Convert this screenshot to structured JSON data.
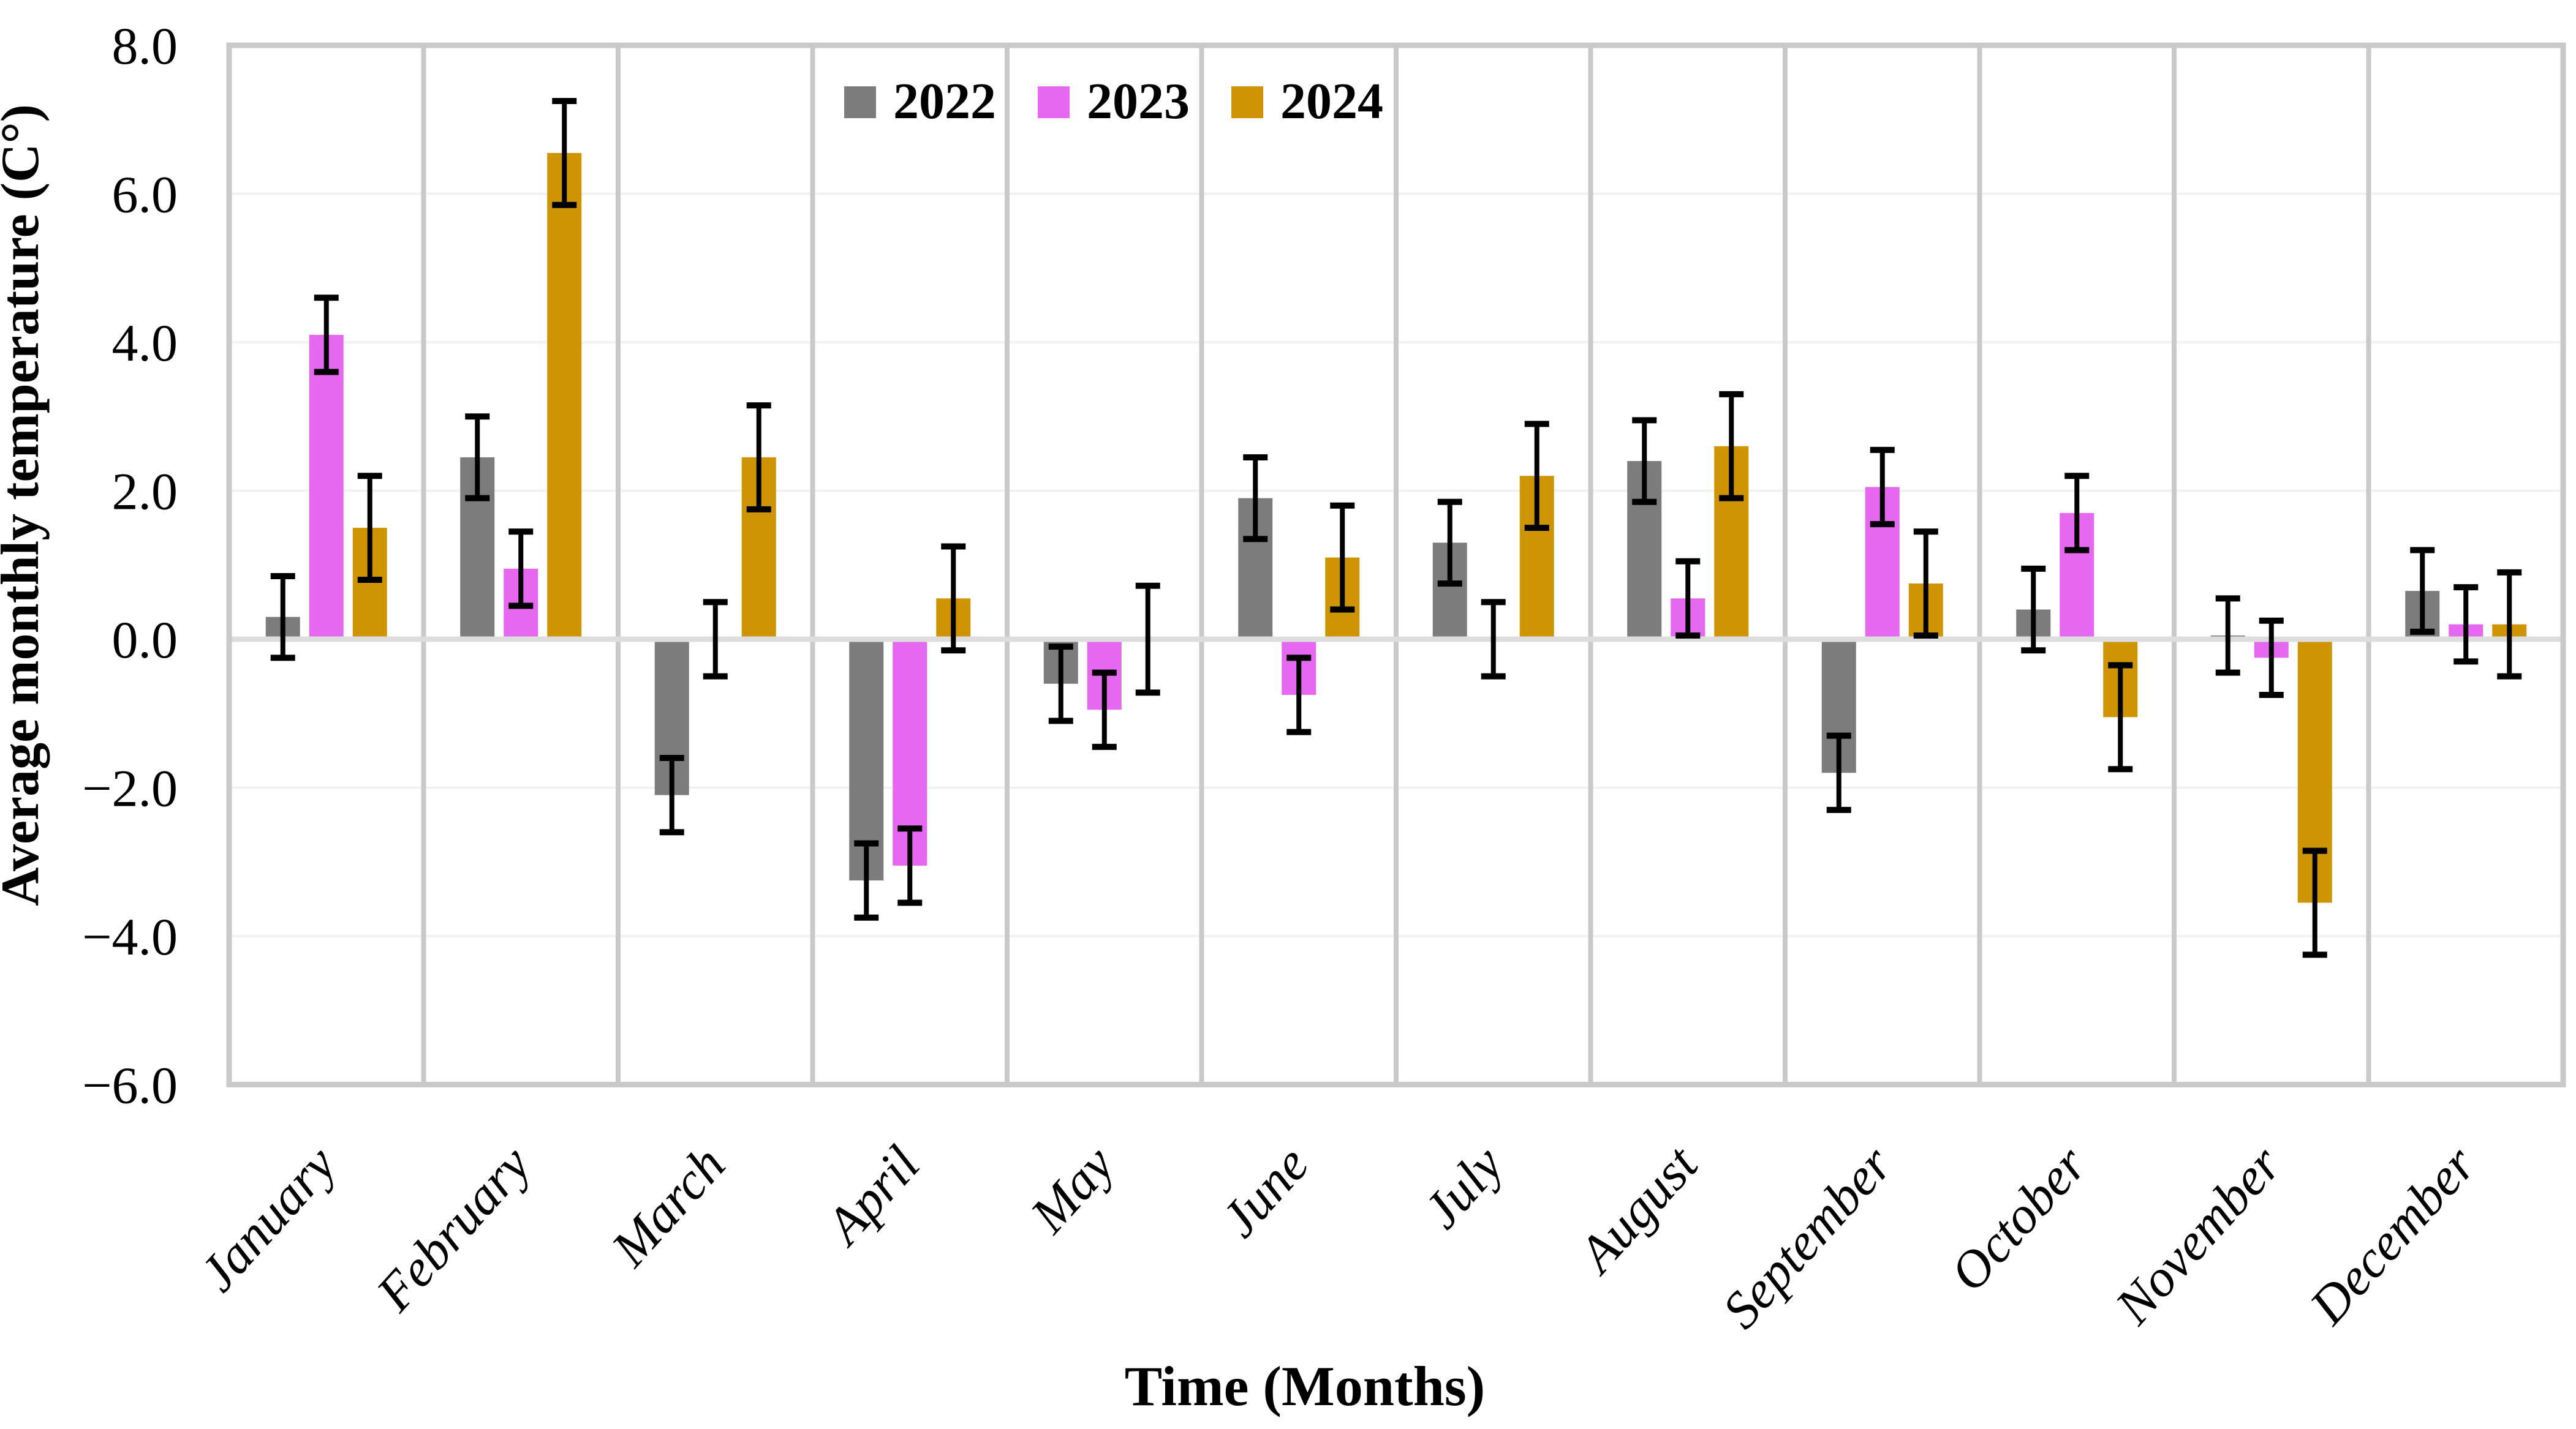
{
  "chart_data": {
    "type": "bar",
    "title": "",
    "xlabel": "Time (Months)",
    "ylabel": "Average monthly temperature (C°)",
    "categories": [
      "January",
      "February",
      "March",
      "April",
      "May",
      "June",
      "July",
      "August",
      "September",
      "October",
      "November",
      "December"
    ],
    "series": [
      {
        "name": "2022",
        "color": "#7C7C7C",
        "values": [
          0.3,
          2.45,
          -2.1,
          -3.25,
          -0.6,
          1.9,
          1.3,
          2.4,
          -1.8,
          0.4,
          0.05,
          0.65
        ],
        "errors": [
          0.55,
          0.55,
          0.5,
          0.5,
          0.5,
          0.55,
          0.55,
          0.55,
          0.5,
          0.55,
          0.5,
          0.55
        ]
      },
      {
        "name": "2023",
        "color": "#E667F0",
        "values": [
          4.1,
          0.95,
          0.0,
          -3.05,
          -0.95,
          -0.75,
          0.0,
          0.55,
          2.05,
          1.7,
          -0.25,
          0.2
        ],
        "errors": [
          0.5,
          0.5,
          0.5,
          0.5,
          0.5,
          0.5,
          0.5,
          0.5,
          0.5,
          0.5,
          0.5,
          0.5
        ]
      },
      {
        "name": "2024",
        "color": "#CE9402",
        "values": [
          1.5,
          6.55,
          2.45,
          0.55,
          0.0,
          1.1,
          2.2,
          2.6,
          0.75,
          -1.05,
          -3.55,
          0.2
        ],
        "errors": [
          0.7,
          0.7,
          0.7,
          0.7,
          0.72,
          0.7,
          0.7,
          0.7,
          0.7,
          0.7,
          0.7,
          0.7
        ]
      }
    ],
    "ylim": [
      -6.0,
      8.0
    ],
    "y_tick_step": 2.0,
    "y_ticks": [
      "8.0",
      "6.0",
      "4.0",
      "2.0",
      "0.0",
      "−2.0",
      "−4.0",
      "−6.0"
    ],
    "x_tick_angle_deg": -48,
    "legend_position": "top-center",
    "grid": {
      "border_color": "#C9C9C9",
      "separator_color": "#C9C9C9",
      "zero_line_color": "#DCDCDC",
      "minor_gridline_color": "#F2F2F2",
      "error_bar_color": "#000000",
      "background": "#FFFFFF"
    }
  }
}
